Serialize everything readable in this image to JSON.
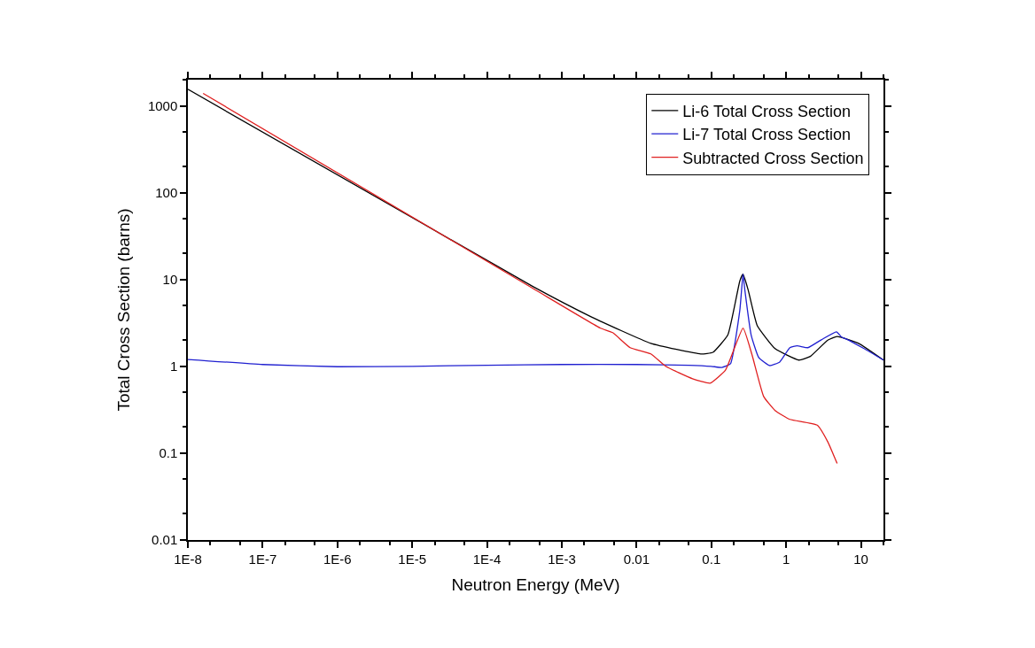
{
  "chart_data": {
    "type": "line",
    "xlabel": "Neutron Energy (MeV)",
    "ylabel": "Total Cross Section (barns)",
    "log": "xy",
    "legend": "top right",
    "marker": "none",
    "line_style": "solid",
    "xlim": [
      1e-08,
      20
    ],
    "ylim": [
      0.01,
      2000
    ],
    "xticks": [
      {
        "value": 1e-08,
        "label": "1E-8"
      },
      {
        "value": 1e-07,
        "label": "1E-7"
      },
      {
        "value": 1e-06,
        "label": "1E-6"
      },
      {
        "value": 1e-05,
        "label": "1E-5"
      },
      {
        "value": 0.0001,
        "label": "1E-4"
      },
      {
        "value": 0.001,
        "label": "1E-3"
      },
      0.01,
      0.1,
      1,
      10
    ],
    "yticks": [
      0.01,
      0.1,
      1,
      10,
      100,
      1000
    ],
    "series": [
      {
        "name": "Li-6 Total Cross Section",
        "color": "#000000",
        "x": [
          1e-08,
          0.00041,
          0.0025,
          0.0155,
          0.072,
          0.105,
          0.166,
          0.24,
          0.265,
          0.31,
          0.41,
          0.71,
          1.48,
          2.1,
          3.6,
          4.8,
          9.3,
          20
        ],
        "values": [
          1550,
          8.3,
          3.7,
          1.84,
          1.39,
          1.45,
          2.3,
          9.6,
          11.5,
          7.6,
          2.95,
          1.6,
          1.18,
          1.3,
          2.0,
          2.2,
          1.84,
          1.18
        ]
      },
      {
        "name": "Li-7 Total Cross Section",
        "color": "#2020d0",
        "x": [
          1e-08,
          1e-07,
          1e-06,
          1e-05,
          0.0001,
          0.001,
          0.01,
          0.05,
          0.1,
          0.138,
          0.18,
          0.24,
          0.265,
          0.28,
          0.34,
          0.43,
          0.6,
          0.82,
          1.12,
          1.4,
          1.95,
          2.95,
          4.7,
          5.5,
          6.3,
          11,
          20
        ],
        "values": [
          1.2,
          1.05,
          0.99,
          1.0,
          1.03,
          1.05,
          1.05,
          1.03,
          1.0,
          0.97,
          1.07,
          4.4,
          11.5,
          7.6,
          2.3,
          1.26,
          1.02,
          1.12,
          1.64,
          1.72,
          1.64,
          2.02,
          2.5,
          2.17,
          2.07,
          1.6,
          1.18
        ]
      },
      {
        "name": "Subtracted Cross Section",
        "color": "#e02020",
        "x": [
          1.6e-08,
          0.00041,
          0.0033,
          0.0048,
          0.0082,
          0.0155,
          0.0245,
          0.056,
          0.096,
          0.155,
          0.265,
          0.35,
          0.5,
          0.71,
          1.12,
          2.6,
          3.6,
          4.8
        ],
        "values": [
          1390,
          7.9,
          2.75,
          2.44,
          1.64,
          1.39,
          1.0,
          0.72,
          0.64,
          0.91,
          2.75,
          1.35,
          0.45,
          0.31,
          0.245,
          0.21,
          0.135,
          0.076
        ]
      }
    ]
  }
}
